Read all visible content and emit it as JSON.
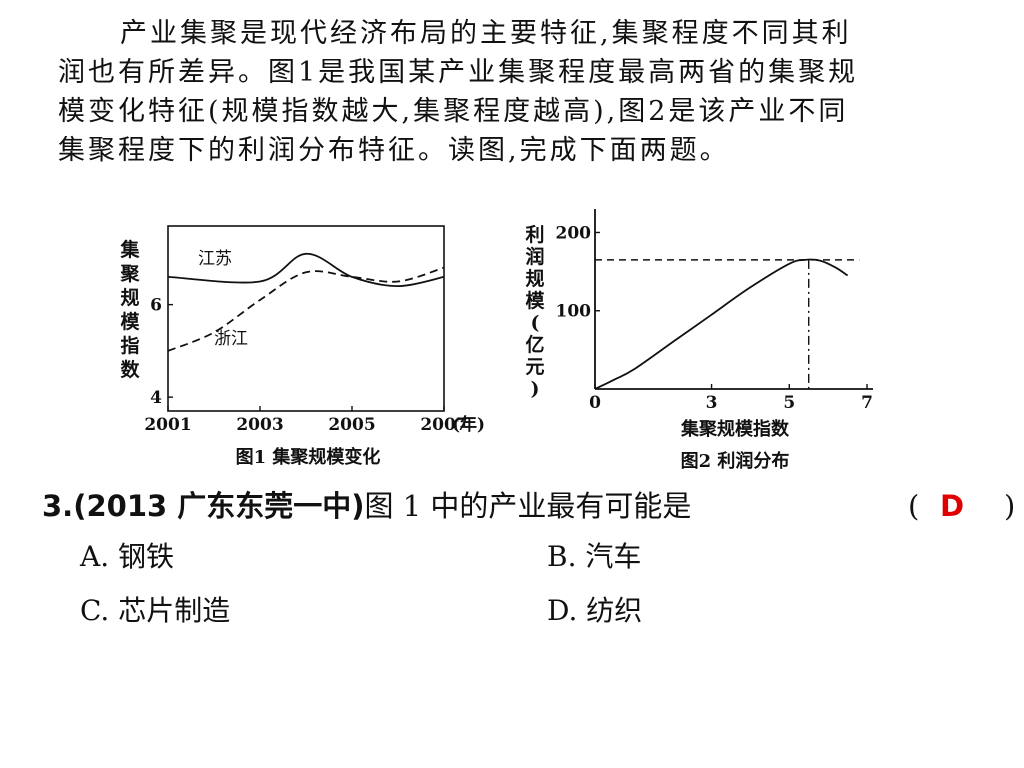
{
  "passage": {
    "line1": "产业集聚是现代经济布局的主要特征,集聚程度不同其利",
    "line2": "润也有所差异。图1是我国某产业集聚程度最高两省的集聚规",
    "line3": "模变化特征(规模指数越大,集聚程度越高),图2是该产业不同",
    "line4": "集聚程度下的利润分布特征。读图,完成下面两题。"
  },
  "figure1": {
    "ylabel_chars": [
      "集",
      "聚",
      "规",
      "模",
      "指",
      "数"
    ],
    "caption": "图1  集聚规模变化",
    "series_labels": {
      "jiangsu": "江苏",
      "zhejiang": "浙江"
    },
    "xunit": "(年)"
  },
  "figure2": {
    "ylabel_chars": [
      "利",
      "润",
      "规",
      "模",
      "(",
      "亿",
      "元",
      ")"
    ],
    "xlabel": "集聚规模指数",
    "caption": "图2  利润分布"
  },
  "chart_data": [
    {
      "type": "line",
      "title": "图1  集聚规模变化",
      "xlabel": "(年)",
      "ylabel": "集聚规模指数",
      "xlim": [
        2001,
        2007
      ],
      "ylim": [
        3.7,
        7.7
      ],
      "x_ticks": [
        "2001",
        "2003",
        "2005",
        "2007"
      ],
      "y_ticks": [
        "4",
        "6"
      ],
      "series": [
        {
          "name": "江苏",
          "style": "solid",
          "x": [
            2001,
            2003,
            2004,
            2005,
            2006,
            2007
          ],
          "y": [
            6.6,
            6.5,
            7.1,
            6.6,
            6.4,
            6.6
          ]
        },
        {
          "name": "浙江",
          "style": "dashed",
          "x": [
            2001,
            2002,
            2003,
            2004,
            2005,
            2006,
            2007
          ],
          "y": [
            5.0,
            5.4,
            6.1,
            6.7,
            6.6,
            6.5,
            6.8
          ]
        }
      ]
    },
    {
      "type": "line",
      "title": "图2  利润分布",
      "xlabel": "集聚规模指数",
      "ylabel": "利润规模(亿元)",
      "xlim": [
        0,
        7
      ],
      "ylim": [
        0,
        230
      ],
      "x_ticks": [
        "0",
        "3",
        "5",
        "7"
      ],
      "y_ticks": [
        "100",
        "200"
      ],
      "series": [
        {
          "name": "",
          "style": "solid",
          "x": [
            0,
            0.5,
            1,
            2,
            3,
            4,
            5,
            5.4,
            5.8,
            6.2,
            6.5
          ],
          "y": [
            0,
            12,
            25,
            60,
            95,
            130,
            160,
            165,
            164,
            155,
            145
          ]
        }
      ],
      "peak": {
        "x": 5.5,
        "y": 165
      }
    }
  ],
  "question": {
    "number": "3.",
    "source": "(2013 广东东莞一中)",
    "stem": "图 1 中的产业最有可能是",
    "paren_left": "(",
    "answer": "D",
    "paren_right": ")"
  },
  "options": {
    "a": "A. 钢铁",
    "b": "B. 汽车",
    "c": "C. 芯片制造",
    "d": "D. 纺织"
  },
  "colors": {
    "answer": "#e00000",
    "text": "#111111"
  }
}
